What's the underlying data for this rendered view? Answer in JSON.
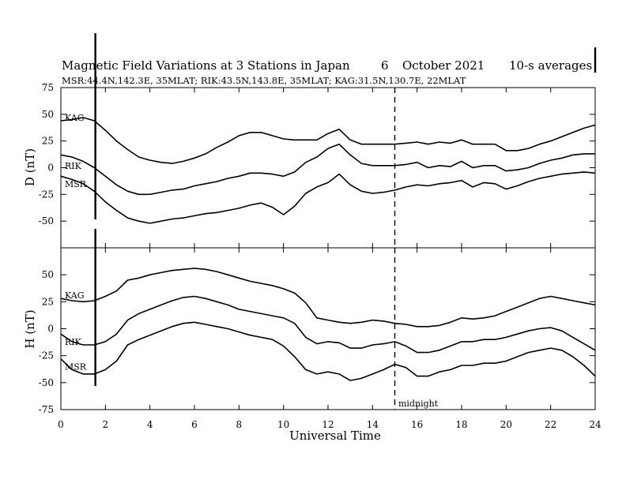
{
  "chart_data": {
    "type": "line",
    "title": "Magnetic Field Variations at 3 Stations in Japan",
    "date_day": "6",
    "date_month_year": "October 2021",
    "averaging": "10-s averages",
    "station_info": "MSR:44.4N,142.3E, 35MLAT;  RIK:43.5N,143.8E, 35MLAT;  KAG:31.5N,130.7E, 22MLAT",
    "xlabel": "Universal Time",
    "xlim": [
      0,
      24
    ],
    "x_ticks": [
      0,
      2,
      4,
      6,
      8,
      10,
      12,
      14,
      16,
      18,
      20,
      22,
      24
    ],
    "midnight_ut": 15,
    "midnight_label": "midnight",
    "marker_ut": 1.55,
    "panels": [
      {
        "component": "D",
        "ylabel": "D (nT)",
        "ylim": [
          -75,
          75
        ],
        "y_ticks": [
          75,
          50,
          25,
          0,
          -25,
          -50
        ],
        "series": [
          {
            "name": "KAG",
            "label": "KAG",
            "label_value": 47,
            "x": [
              0,
              0.5,
              1,
              1.5,
              2,
              2.5,
              3,
              3.5,
              4,
              4.5,
              5,
              5.5,
              6,
              6.5,
              7,
              7.5,
              8,
              8.5,
              9,
              9.5,
              10,
              10.5,
              11,
              11.5,
              12,
              12.5,
              13,
              13.5,
              14,
              14.5,
              15,
              15.5,
              16,
              16.5,
              17,
              17.5,
              18,
              18.5,
              19,
              19.5,
              20,
              20.5,
              21,
              21.5,
              22,
              22.5,
              23,
              23.5,
              24
            ],
            "y": [
              44,
              45,
              47,
              44,
              35,
              25,
              17,
              10,
              7,
              5,
              4,
              6,
              9,
              13,
              19,
              24,
              30,
              33,
              33,
              30,
              27,
              26,
              26,
              26,
              32,
              36,
              26,
              22,
              22,
              22,
              22,
              23,
              24,
              22,
              24,
              23,
              26,
              22,
              22,
              22,
              16,
              16,
              18,
              22,
              25,
              29,
              33,
              37,
              40
            ]
          },
          {
            "name": "RIK",
            "label": "RIK",
            "label_value": 2,
            "x": [
              0,
              0.5,
              1,
              1.5,
              2,
              2.5,
              3,
              3.5,
              4,
              4.5,
              5,
              5.5,
              6,
              6.5,
              7,
              7.5,
              8,
              8.5,
              9,
              9.5,
              10,
              10.5,
              11,
              11.5,
              12,
              12.5,
              13,
              13.5,
              14,
              14.5,
              15,
              15.5,
              16,
              16.5,
              17,
              17.5,
              18,
              18.5,
              19,
              19.5,
              20,
              20.5,
              21,
              21.5,
              22,
              22.5,
              23,
              23.5,
              24
            ],
            "y": [
              12,
              10,
              6,
              0,
              -8,
              -16,
              -22,
              -25,
              -25,
              -23,
              -21,
              -20,
              -17,
              -15,
              -13,
              -10,
              -8,
              -5,
              -5,
              -6,
              -8,
              -4,
              5,
              10,
              18,
              22,
              12,
              4,
              2,
              2,
              2,
              3,
              5,
              0,
              2,
              1,
              6,
              0,
              2,
              2,
              -3,
              -2,
              0,
              4,
              7,
              9,
              12,
              13,
              13
            ]
          },
          {
            "name": "MSR",
            "label": "MSR",
            "label_value": -15,
            "x": [
              0,
              0.5,
              1,
              1.5,
              2,
              2.5,
              3,
              3.5,
              4,
              4.5,
              5,
              5.5,
              6,
              6.5,
              7,
              7.5,
              8,
              8.5,
              9,
              9.5,
              10,
              10.5,
              11,
              11.5,
              12,
              12.5,
              13,
              13.5,
              14,
              14.5,
              15,
              15.5,
              16,
              16.5,
              17,
              17.5,
              18,
              18.5,
              19,
              19.5,
              20,
              20.5,
              21,
              21.5,
              22,
              22.5,
              23,
              23.5,
              24
            ],
            "y": [
              -8,
              -11,
              -15,
              -22,
              -32,
              -40,
              -47,
              -50,
              -52,
              -50,
              -48,
              -47,
              -45,
              -43,
              -42,
              -40,
              -38,
              -35,
              -33,
              -37,
              -44,
              -36,
              -24,
              -18,
              -14,
              -6,
              -16,
              -22,
              -24,
              -23,
              -21,
              -18,
              -16,
              -17,
              -15,
              -14,
              -12,
              -18,
              -14,
              -15,
              -20,
              -17,
              -13,
              -10,
              -8,
              -6,
              -5,
              -4,
              -5
            ]
          }
        ]
      },
      {
        "component": "H",
        "ylabel": "H (nT)",
        "ylim": [
          -75,
          75
        ],
        "y_ticks": [
          50,
          25,
          0,
          -25,
          -50,
          -75
        ],
        "series": [
          {
            "name": "KAG",
            "label": "KAG",
            "label_value": 31,
            "x": [
              0,
              0.5,
              1,
              1.5,
              2,
              2.5,
              3,
              3.5,
              4,
              4.5,
              5,
              5.5,
              6,
              6.5,
              7,
              7.5,
              8,
              8.5,
              9,
              9.5,
              10,
              10.5,
              11,
              11.5,
              12,
              12.5,
              13,
              13.5,
              14,
              14.5,
              15,
              15.5,
              16,
              16.5,
              17,
              17.5,
              18,
              18.5,
              19,
              19.5,
              20,
              20.5,
              21,
              21.5,
              22,
              22.5,
              23,
              23.5,
              24
            ],
            "y": [
              28,
              26,
              25,
              26,
              30,
              35,
              45,
              47,
              50,
              52,
              54,
              55,
              56,
              55,
              53,
              50,
              47,
              44,
              42,
              40,
              37,
              33,
              24,
              10,
              8,
              6,
              5,
              6,
              8,
              7,
              5,
              4,
              2,
              2,
              3,
              6,
              10,
              9,
              10,
              12,
              16,
              20,
              24,
              28,
              30,
              28,
              26,
              24,
              22
            ]
          },
          {
            "name": "RIK",
            "label": "RIK",
            "label_value": -12,
            "x": [
              0,
              0.5,
              1,
              1.5,
              2,
              2.5,
              3,
              3.5,
              4,
              4.5,
              5,
              5.5,
              6,
              6.5,
              7,
              7.5,
              8,
              8.5,
              9,
              9.5,
              10,
              10.5,
              11,
              11.5,
              12,
              12.5,
              13,
              13.5,
              14,
              14.5,
              15,
              15.5,
              16,
              16.5,
              17,
              17.5,
              18,
              18.5,
              19,
              19.5,
              20,
              20.5,
              21,
              21.5,
              22,
              22.5,
              23,
              23.5,
              24
            ],
            "y": [
              -5,
              -12,
              -15,
              -15,
              -12,
              -5,
              8,
              14,
              18,
              22,
              26,
              29,
              30,
              28,
              25,
              22,
              18,
              16,
              14,
              12,
              10,
              5,
              -8,
              -14,
              -12,
              -13,
              -18,
              -18,
              -15,
              -14,
              -12,
              -16,
              -22,
              -22,
              -20,
              -16,
              -12,
              -12,
              -10,
              -10,
              -8,
              -5,
              -2,
              0,
              1,
              -2,
              -8,
              -14,
              -20
            ]
          },
          {
            "name": "MSR",
            "label": "MSR",
            "label_value": -35,
            "x": [
              0,
              0.5,
              1,
              1.5,
              2,
              2.5,
              3,
              3.5,
              4,
              4.5,
              5,
              5.5,
              6,
              6.5,
              7,
              7.5,
              8,
              8.5,
              9,
              9.5,
              10,
              10.5,
              11,
              11.5,
              12,
              12.5,
              13,
              13.5,
              14,
              14.5,
              15,
              15.5,
              16,
              16.5,
              17,
              17.5,
              18,
              18.5,
              19,
              19.5,
              20,
              20.5,
              21,
              21.5,
              22,
              22.5,
              23,
              23.5,
              24
            ],
            "y": [
              -28,
              -38,
              -42,
              -42,
              -38,
              -30,
              -15,
              -10,
              -6,
              -2,
              2,
              5,
              6,
              4,
              2,
              0,
              -3,
              -6,
              -8,
              -10,
              -16,
              -26,
              -38,
              -42,
              -40,
              -42,
              -48,
              -46,
              -42,
              -38,
              -33,
              -36,
              -44,
              -44,
              -40,
              -38,
              -34,
              -34,
              -32,
              -32,
              -30,
              -26,
              -22,
              -20,
              -18,
              -20,
              -26,
              -34,
              -44
            ]
          }
        ]
      }
    ]
  }
}
